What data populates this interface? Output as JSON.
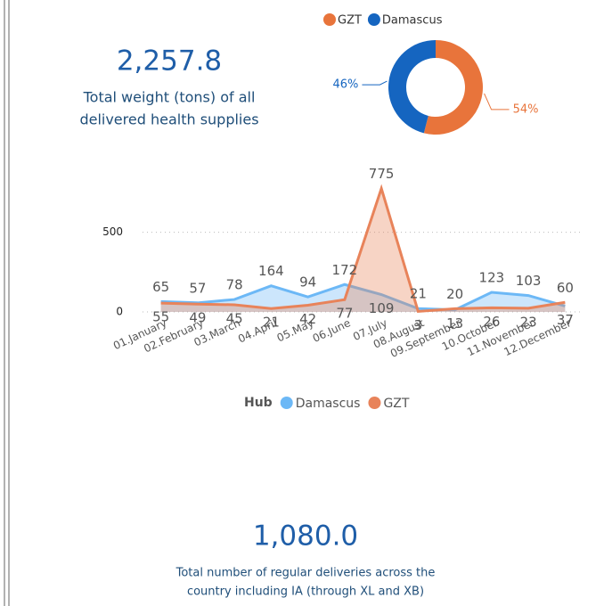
{
  "kpis": [
    {
      "value": "2,257.8",
      "label_lines": [
        "Total weight (tons) of all",
        "delivered health supplies"
      ]
    },
    {
      "value": "1,080.0",
      "label_lines": [
        "Total number of regular deliveries across the",
        "country including IA (through XL and XB)"
      ]
    }
  ],
  "chart_data": [
    {
      "type": "pie",
      "categories": [
        "GZT",
        "Damascus"
      ],
      "values": [
        54,
        46
      ],
      "value_labels": [
        "54%",
        "46%"
      ],
      "colors": [
        "#e8743b",
        "#1565c0"
      ],
      "legend": "top"
    },
    {
      "type": "area",
      "legend_title": "Hub",
      "legend": "bottom",
      "categories": [
        "01.January",
        "02.February",
        "03.March",
        "04.April",
        "05.May",
        "06.June",
        "07.July",
        "08.August",
        "09.September",
        "10.October",
        "11.November",
        "12.December"
      ],
      "series": [
        {
          "name": "Damascus",
          "color": "#6cb8f6",
          "values": [
            65,
            57,
            78,
            164,
            94,
            172,
            109,
            21,
            13,
            123,
            103,
            37
          ]
        },
        {
          "name": "GZT",
          "color": "#e8835a",
          "values": [
            55,
            49,
            45,
            21,
            42,
            77,
            775,
            3,
            20,
            26,
            23,
            60
          ]
        }
      ],
      "ylim": [
        0,
        800
      ],
      "yticks": [
        0,
        500
      ],
      "grid": true
    }
  ]
}
